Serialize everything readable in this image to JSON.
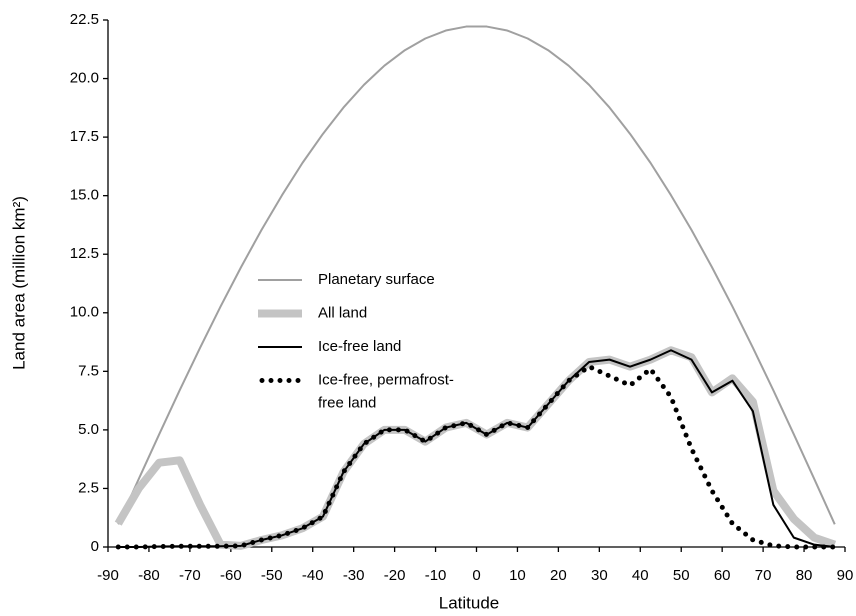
{
  "chart_data": {
    "type": "line",
    "xlabel": "Latitude",
    "ylabel": "Land area (million km²)",
    "x": [
      -87.5,
      -82.5,
      -77.5,
      -72.5,
      -67.5,
      -62.5,
      -57.5,
      -52.5,
      -47.5,
      -42.5,
      -37.5,
      -32.5,
      -27.5,
      -22.5,
      -17.5,
      -12.5,
      -7.5,
      -2.5,
      2.5,
      7.5,
      12.5,
      17.5,
      22.5,
      27.5,
      32.5,
      37.5,
      42.5,
      47.5,
      52.5,
      57.5,
      62.5,
      67.5,
      72.5,
      77.5,
      82.5,
      87.5
    ],
    "series": [
      {
        "name": "Planetary surface",
        "color": "#a0a0a0",
        "width": 2,
        "dotted": false,
        "values": [
          0.97,
          2.9,
          4.81,
          6.69,
          8.51,
          10.27,
          11.95,
          13.54,
          15.02,
          16.4,
          17.64,
          18.76,
          19.73,
          20.55,
          21.21,
          21.71,
          22.05,
          22.22,
          22.22,
          22.05,
          21.71,
          21.21,
          20.55,
          19.73,
          18.76,
          17.64,
          16.4,
          15.02,
          13.54,
          11.95,
          10.27,
          8.51,
          6.69,
          4.81,
          2.9,
          0.97
        ]
      },
      {
        "name": "All land",
        "color": "#c4c4c4",
        "width": 8,
        "dotted": false,
        "values": [
          1.0,
          2.5,
          3.6,
          3.7,
          1.8,
          0.1,
          0.05,
          0.3,
          0.5,
          0.8,
          1.3,
          3.2,
          4.4,
          5.0,
          5.0,
          4.5,
          5.1,
          5.3,
          4.8,
          5.3,
          5.1,
          6.1,
          7.1,
          7.9,
          8.0,
          7.7,
          8.0,
          8.4,
          8.1,
          6.6,
          7.2,
          6.2,
          2.4,
          1.2,
          0.4,
          0.1
        ]
      },
      {
        "name": "Ice-free land",
        "color": "#000000",
        "width": 2,
        "dotted": false,
        "values": [
          0,
          0,
          0.02,
          0.03,
          0.03,
          0.03,
          0.05,
          0.3,
          0.5,
          0.8,
          1.3,
          3.2,
          4.4,
          5.0,
          5.0,
          4.5,
          5.1,
          5.3,
          4.8,
          5.3,
          5.1,
          6.1,
          7.1,
          7.9,
          8.0,
          7.7,
          8.0,
          8.4,
          8.0,
          6.6,
          7.1,
          5.8,
          1.8,
          0.4,
          0.1,
          0
        ]
      },
      {
        "name": "Ice-free, permafrost-\nfree land",
        "color": "#000000",
        "width": 5,
        "dotted": true,
        "values": [
          0,
          0,
          0.02,
          0.03,
          0.03,
          0.03,
          0.05,
          0.3,
          0.5,
          0.8,
          1.3,
          3.2,
          4.4,
          5.0,
          5.0,
          4.5,
          5.1,
          5.3,
          4.8,
          5.3,
          5.1,
          6.1,
          7.1,
          7.7,
          7.3,
          6.9,
          7.6,
          6.4,
          4.2,
          2.4,
          1.0,
          0.3,
          0.05,
          0,
          0,
          0
        ]
      }
    ],
    "xlim": [
      -90,
      90
    ],
    "xticks": [
      -90,
      -80,
      -70,
      -60,
      -50,
      -40,
      -30,
      -20,
      -10,
      0,
      10,
      20,
      30,
      40,
      50,
      60,
      70,
      80,
      90
    ],
    "ylim": [
      0,
      22.5
    ],
    "yticks": [
      0,
      2.5,
      {
        "value": 5,
        "label": "5.0"
      },
      7.5,
      {
        "value": 10,
        "label": "10.0"
      },
      12.5,
      {
        "value": 15,
        "label": "15.0"
      },
      17.5,
      {
        "value": 20,
        "label": "20.0"
      },
      22.5
    ],
    "grid": false
  }
}
